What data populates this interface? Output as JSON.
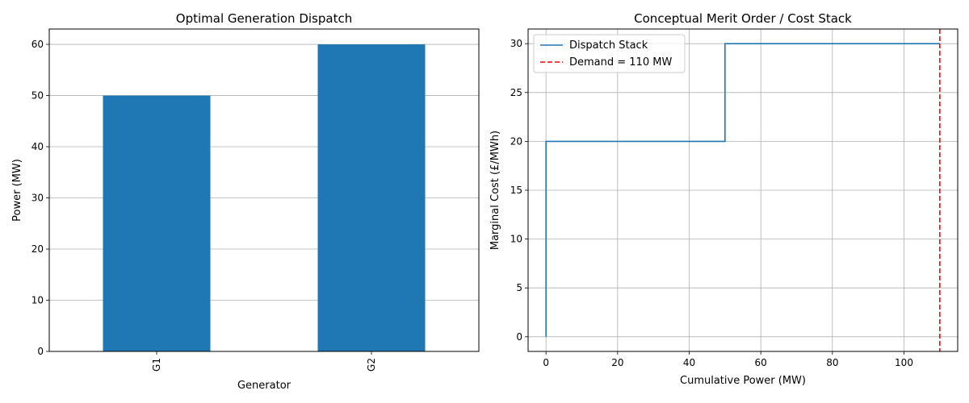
{
  "chart_data": [
    {
      "type": "bar",
      "title": "Optimal Generation Dispatch",
      "xlabel": "Generator",
      "ylabel": "Power (MW)",
      "categories": [
        "G1",
        "G2"
      ],
      "values": [
        50,
        60
      ],
      "ylim": [
        0,
        63
      ],
      "yticks": [
        0,
        10,
        20,
        30,
        40,
        50,
        60
      ],
      "grid": "y",
      "color": "#1f77b4"
    },
    {
      "type": "line",
      "title": "Conceptual Merit Order / Cost Stack",
      "xlabel": "Cumulative Power (MW)",
      "ylabel": "Marginal Cost (£/MWh)",
      "xlim": [
        -5,
        115
      ],
      "ylim": [
        -1.5,
        31.5
      ],
      "xticks": [
        0,
        20,
        40,
        60,
        80,
        100
      ],
      "yticks": [
        0,
        5,
        10,
        15,
        20,
        25,
        30
      ],
      "grid": "both",
      "legend": "top-left",
      "series": [
        {
          "name": "Dispatch Stack",
          "style": "step",
          "color": "#1f77b4",
          "x": [
            0,
            0,
            50,
            50,
            110
          ],
          "y": [
            0,
            20,
            20,
            30,
            30
          ]
        },
        {
          "name": "Demand = 110 MW",
          "style": "vline",
          "color": "#ff0000",
          "x": 110
        }
      ]
    }
  ]
}
